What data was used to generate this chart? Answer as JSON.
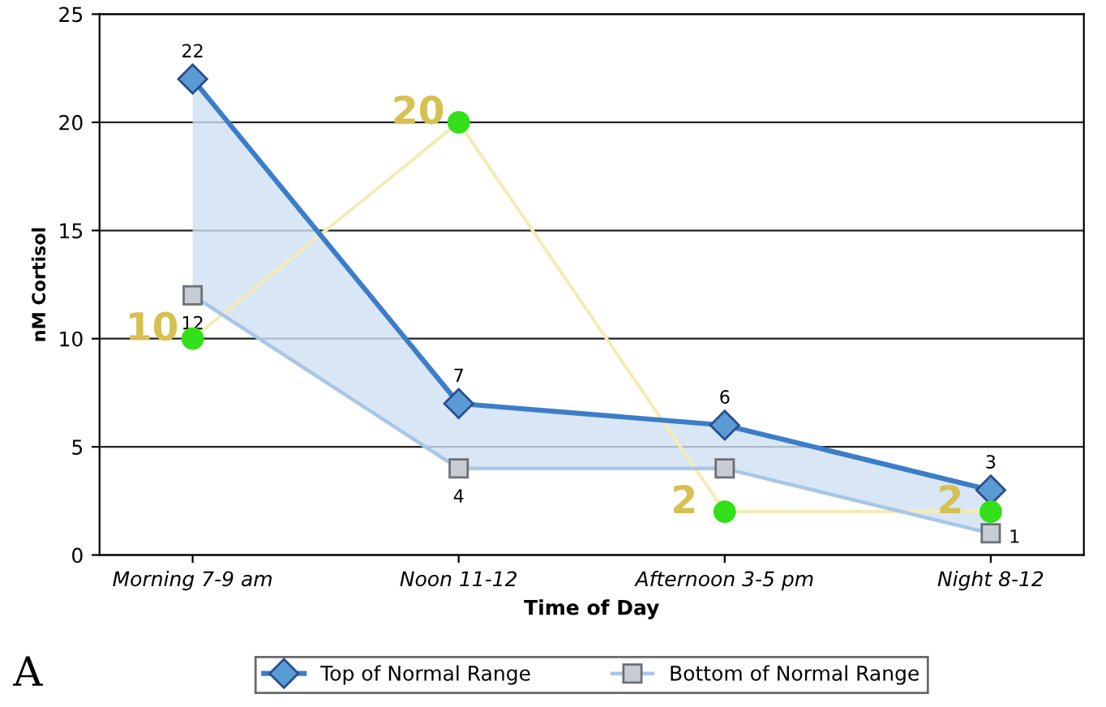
{
  "chart_data": {
    "type": "line",
    "xlabel": "Time of Day",
    "ylabel": "nM Cortisol",
    "categories": [
      "Morning 7-9 am",
      "Noon 11-12",
      "Afternoon 3-5 pm",
      "Night 8-12"
    ],
    "series": [
      {
        "name": "Top of Normal Range",
        "color": "#3c7dc8",
        "values": [
          22,
          7,
          6,
          3
        ],
        "marker": "diamond",
        "value_labels": [
          "22",
          "7",
          "6",
          "3"
        ],
        "lower": [
          12,
          4,
          4,
          1
        ],
        "upper": [
          22,
          7,
          6,
          3
        ]
      },
      {
        "name": "Bottom of Normal Range",
        "color": "#a8c6e6",
        "values": [
          12,
          4,
          4,
          1
        ],
        "marker": "square",
        "value_labels": [
          "12",
          "4",
          null,
          "1"
        ]
      },
      {
        "color": "#33e01a",
        "values": [
          10,
          20,
          2,
          2
        ],
        "marker": "circle",
        "value_labels": [
          "10",
          "20",
          "2",
          "2"
        ]
      }
    ],
    "ylim": [
      0,
      25
    ],
    "yticks": [
      0,
      5,
      10,
      15,
      20,
      25
    ],
    "grid": "y",
    "legend": "bottom",
    "line_style": "solid",
    "annotations": [
      "A"
    ]
  }
}
